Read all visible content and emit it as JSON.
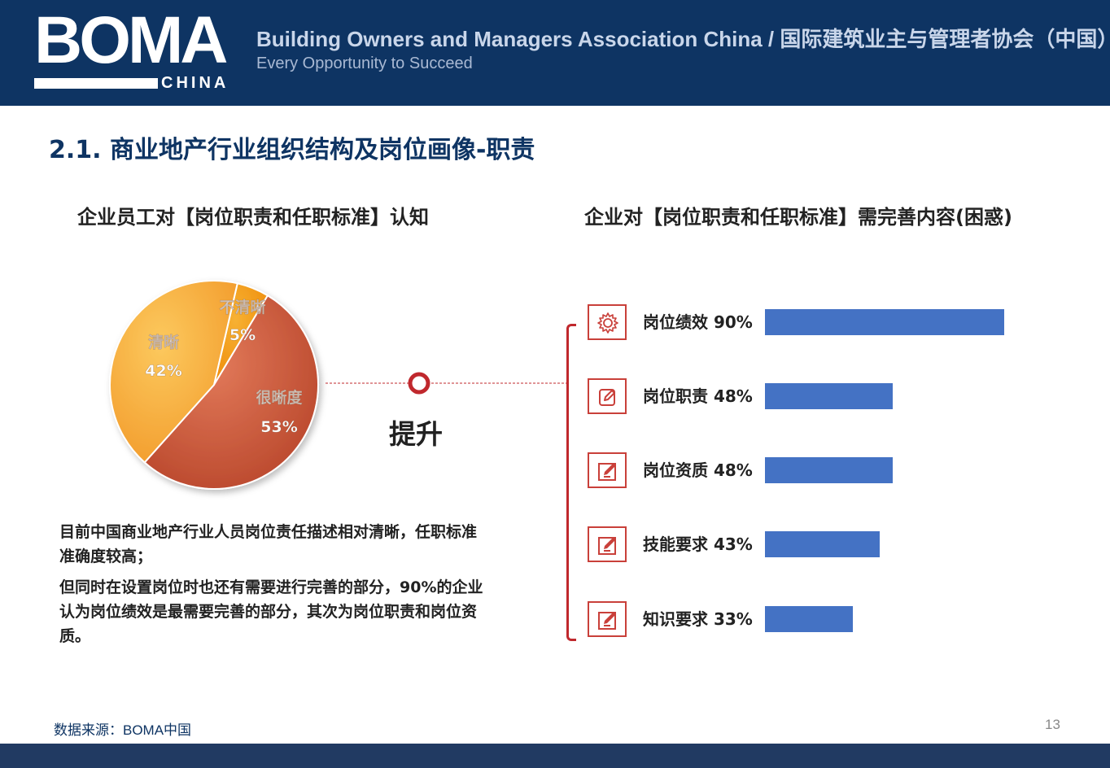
{
  "header": {
    "logo_text": "BOMA",
    "logo_sub": "CHINA",
    "org_name": "Building Owners and Managers Association China / 国际建筑业主与管理者协会（中国）",
    "tagline": "Every Opportunity to Succeed"
  },
  "page_title": "2.1. 商业地产行业组织结构及岗位画像-职责",
  "colors": {
    "header_bg": "#0e3463",
    "accent_red": "#c0282d",
    "bar_blue": "#4472c4"
  },
  "chart_data": [
    {
      "type": "pie",
      "title": "企业员工对【岗位职责和任职标准】认知",
      "slices": [
        {
          "label": "很晰度",
          "value": 53,
          "display": "53%",
          "color": "#c8553a"
        },
        {
          "label": "清晰",
          "value": 42,
          "display": "42%",
          "color": "#f5a83a"
        },
        {
          "label": "不清晰",
          "value": 5,
          "display": "5%",
          "color": "#f09a14"
        }
      ]
    },
    {
      "type": "bar",
      "orientation": "horizontal",
      "title": "企业对【岗位职责和任职标准】需完善内容(困惑)",
      "xlim": [
        0,
        100
      ],
      "categories": [
        "岗位绩效",
        "岗位职责",
        "岗位资质",
        "技能要求",
        "知识要求"
      ],
      "values": [
        90,
        48,
        48,
        43,
        33
      ],
      "labels": [
        "岗位绩效 90%",
        "岗位职责 48%",
        "岗位资质 48%",
        "技能要求 43%",
        "知识要求 33%"
      ],
      "icons": [
        "gear-icon",
        "edit-icon",
        "pencil-square-icon",
        "pencil-square-icon",
        "pencil-square-icon"
      ]
    }
  ],
  "connector_label": "提升",
  "paragraphs": [
    "目前中国商业地产行业人员岗位责任描述相对清晰，任职标准准确度较高；",
    "但同时在设置岗位时也还有需要进行完善的部分，90%的企业认为岗位绩效是最需要完善的部分，其次为岗位职责和岗位资质。"
  ],
  "source": "数据来源：BOMA中国",
  "page_number": "13"
}
